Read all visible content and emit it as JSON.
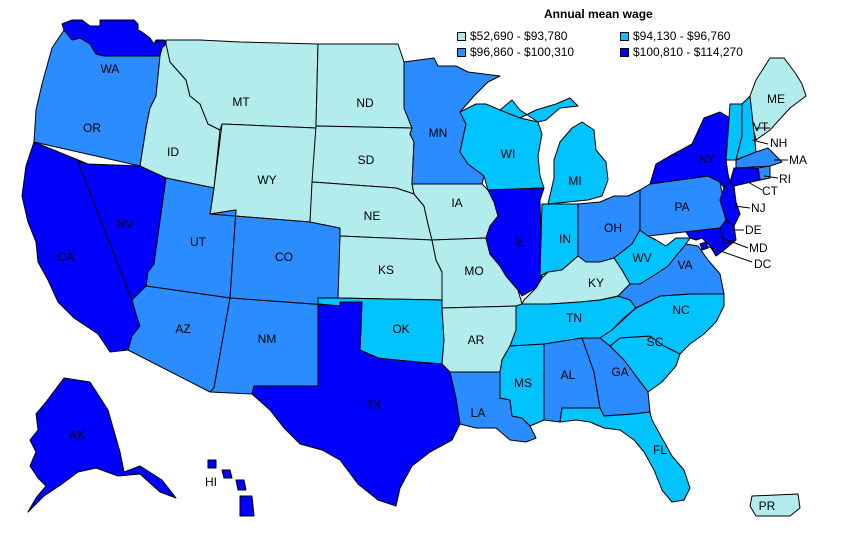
{
  "legend": {
    "title": "Annual mean wage",
    "items": [
      {
        "label": "$52,690 - $93,780",
        "color": "#b3ecec"
      },
      {
        "label": "$94,130 - $96,760",
        "color": "#00c3ff"
      },
      {
        "label": "$96,860 - $100,310",
        "color": "#2a8cff"
      },
      {
        "label": "$100,810 - $114,270",
        "color": "#0000ff"
      }
    ]
  },
  "states": [
    {
      "abbr": "WA",
      "cls": 3
    },
    {
      "abbr": "OR",
      "cls": 2
    },
    {
      "abbr": "CA",
      "cls": 3
    },
    {
      "abbr": "NV",
      "cls": 3
    },
    {
      "abbr": "ID",
      "cls": 0
    },
    {
      "abbr": "MT",
      "cls": 0
    },
    {
      "abbr": "WY",
      "cls": 0
    },
    {
      "abbr": "UT",
      "cls": 2
    },
    {
      "abbr": "AZ",
      "cls": 2
    },
    {
      "abbr": "CO",
      "cls": 2
    },
    {
      "abbr": "NM",
      "cls": 2
    },
    {
      "abbr": "ND",
      "cls": 0
    },
    {
      "abbr": "SD",
      "cls": 0
    },
    {
      "abbr": "NE",
      "cls": 0
    },
    {
      "abbr": "KS",
      "cls": 0
    },
    {
      "abbr": "OK",
      "cls": 1
    },
    {
      "abbr": "TX",
      "cls": 3
    },
    {
      "abbr": "MN",
      "cls": 2
    },
    {
      "abbr": "IA",
      "cls": 0
    },
    {
      "abbr": "MO",
      "cls": 0
    },
    {
      "abbr": "AR",
      "cls": 0
    },
    {
      "abbr": "LA",
      "cls": 2
    },
    {
      "abbr": "WI",
      "cls": 1
    },
    {
      "abbr": "IL",
      "cls": 3
    },
    {
      "abbr": "MI",
      "cls": 1
    },
    {
      "abbr": "IN",
      "cls": 1
    },
    {
      "abbr": "OH",
      "cls": 2
    },
    {
      "abbr": "KY",
      "cls": 0
    },
    {
      "abbr": "TN",
      "cls": 1
    },
    {
      "abbr": "MS",
      "cls": 1
    },
    {
      "abbr": "AL",
      "cls": 2
    },
    {
      "abbr": "GA",
      "cls": 2
    },
    {
      "abbr": "FL",
      "cls": 1
    },
    {
      "abbr": "SC",
      "cls": 1
    },
    {
      "abbr": "NC",
      "cls": 1
    },
    {
      "abbr": "VA",
      "cls": 2
    },
    {
      "abbr": "WV",
      "cls": 1
    },
    {
      "abbr": "PA",
      "cls": 2
    },
    {
      "abbr": "NY",
      "cls": 3
    },
    {
      "abbr": "VT",
      "cls": 1
    },
    {
      "abbr": "NH",
      "cls": 1
    },
    {
      "abbr": "ME",
      "cls": 0
    },
    {
      "abbr": "MA",
      "cls": 2
    },
    {
      "abbr": "RI",
      "cls": 2
    },
    {
      "abbr": "CT",
      "cls": 3
    },
    {
      "abbr": "NJ",
      "cls": 3
    },
    {
      "abbr": "DE",
      "cls": 3
    },
    {
      "abbr": "MD",
      "cls": 3
    },
    {
      "abbr": "DC",
      "cls": 3
    },
    {
      "abbr": "AK",
      "cls": 3
    },
    {
      "abbr": "HI",
      "cls": 3
    },
    {
      "abbr": "PR",
      "cls": 0
    }
  ]
}
